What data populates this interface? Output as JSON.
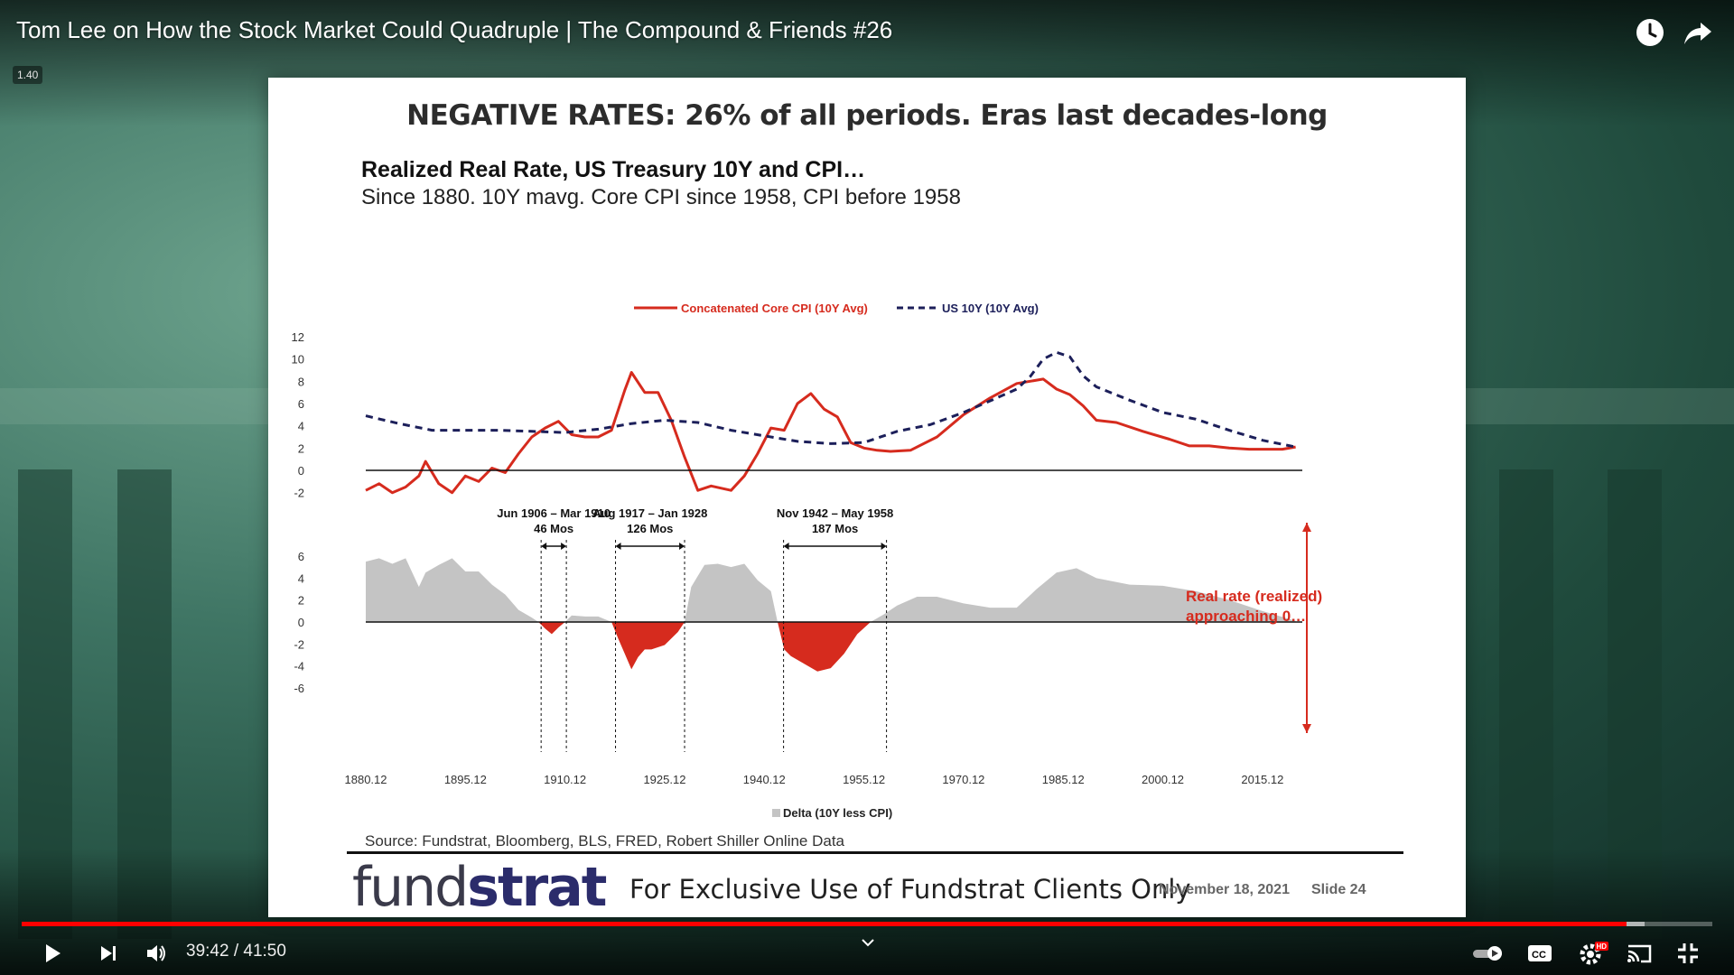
{
  "video": {
    "title": "Tom Lee on How the Stock Market Could Quadruple | The Compound & Friends #26",
    "speed_badge": "1.40"
  },
  "top_controls": [
    {
      "name": "watch-later",
      "icon": "clock-icon"
    },
    {
      "name": "share",
      "icon": "share-arrow-icon"
    }
  ],
  "slide": {
    "header": "NEGATIVE RATES:  26% of all periods.  Eras last decades-long",
    "chart_title": "Realized Real Rate, US Treasury 10Y and CPI…",
    "chart_subtitle": "Since 1880. 10Y mavg. Core CPI since 1958, CPI before 1958",
    "source": "Source: Fundstrat, Bloomberg, BLS, FRED, Robert Shiller Online Data",
    "brand_light": "fund",
    "brand_bold": "strat",
    "exclusive": "For Exclusive Use of Fundstrat Clients Only",
    "date": "November 18, 2021",
    "slide_number": "Slide  24"
  },
  "chart_data": {
    "type": "line",
    "legend": [
      {
        "name": "Concatenated Core CPI (10Y Avg)",
        "color": "#d62b1e",
        "style": "solid"
      },
      {
        "name": "US 10Y (10Y Avg)",
        "color": "#1c1f5a",
        "style": "dashed"
      }
    ],
    "top_panel": {
      "yticks": [
        "12",
        "10",
        "8",
        "6",
        "4",
        "2",
        "0",
        "-2"
      ],
      "ylim": [
        -2,
        12
      ],
      "series": [
        {
          "name": "Concatenated Core CPI (10Y Avg)",
          "x": [
            1880,
            1882,
            1884,
            1886,
            1888,
            1889,
            1891,
            1893,
            1895,
            1897,
            1899,
            1901,
            1903,
            1905,
            1907,
            1909,
            1911,
            1913,
            1915,
            1917,
            1919,
            1920,
            1922,
            1924,
            1926,
            1928,
            1930,
            1932,
            1935,
            1937,
            1939,
            1941,
            1943,
            1945,
            1947,
            1949,
            1951,
            1953,
            1955,
            1957,
            1959,
            1962,
            1966,
            1970,
            1974,
            1978,
            1982,
            1984,
            1986,
            1988,
            1990,
            1993,
            1997,
            2001,
            2004,
            2007,
            2010,
            2013,
            2016,
            2018,
            2020
          ],
          "values": [
            -1.8,
            -1.2,
            -2.0,
            -1.5,
            -0.5,
            0.8,
            -1.2,
            -2.0,
            -0.5,
            -1.0,
            0.2,
            -0.2,
            1.5,
            3.0,
            3.8,
            4.4,
            3.2,
            3.0,
            3.0,
            3.6,
            7.2,
            8.8,
            7.0,
            7.0,
            4.5,
            1.2,
            -1.8,
            -1.4,
            -1.8,
            -0.5,
            1.5,
            3.8,
            3.6,
            6.0,
            6.9,
            5.5,
            4.8,
            2.5,
            2.0,
            1.8,
            1.7,
            1.8,
            3.0,
            5.0,
            6.5,
            7.8,
            8.2,
            7.3,
            6.8,
            5.8,
            4.5,
            4.3,
            3.5,
            2.8,
            2.2,
            2.2,
            2.0,
            1.9,
            1.9,
            1.9,
            2.1
          ]
        },
        {
          "name": "US 10Y (10Y Avg)",
          "x": [
            1880,
            1885,
            1890,
            1895,
            1900,
            1905,
            1910,
            1915,
            1920,
            1925,
            1930,
            1935,
            1940,
            1945,
            1950,
            1955,
            1960,
            1965,
            1970,
            1975,
            1978,
            1980,
            1982,
            1984,
            1986,
            1988,
            1990,
            1995,
            2000,
            2005,
            2010,
            2015,
            2020
          ],
          "values": [
            4.9,
            4.2,
            3.6,
            3.6,
            3.6,
            3.5,
            3.4,
            3.7,
            4.2,
            4.5,
            4.3,
            3.6,
            3.1,
            2.6,
            2.4,
            2.5,
            3.5,
            4.1,
            5.2,
            6.5,
            7.3,
            8.4,
            10.0,
            10.6,
            10.2,
            8.5,
            7.5,
            6.3,
            5.2,
            4.6,
            3.6,
            2.7,
            2.1
          ]
        }
      ]
    },
    "bottom_panel": {
      "legend": "Delta (10Y less CPI)",
      "yticks": [
        "6",
        "4",
        "2",
        "0",
        "-2",
        "-4",
        "-6"
      ],
      "ylim": [
        -6,
        6
      ],
      "series": {
        "name": "Delta (10Y less CPI)",
        "x": [
          1880,
          1882,
          1884,
          1886,
          1888,
          1889,
          1891,
          1893,
          1895,
          1897,
          1899,
          1901,
          1903,
          1905,
          1906,
          1907,
          1908,
          1909,
          1910,
          1911,
          1913,
          1915,
          1917,
          1918,
          1919,
          1920,
          1921,
          1922,
          1923,
          1925,
          1927,
          1928,
          1929,
          1931,
          1933,
          1935,
          1937,
          1939,
          1941,
          1942,
          1943,
          1944,
          1946,
          1948,
          1950,
          1952,
          1954,
          1956,
          1958,
          1960,
          1963,
          1966,
          1970,
          1974,
          1978,
          1981,
          1984,
          1987,
          1990,
          1995,
          2000,
          2005,
          2010,
          2015,
          2020
        ],
        "values": [
          5.5,
          5.8,
          5.3,
          5.8,
          3.2,
          4.5,
          5.2,
          5.8,
          4.6,
          4.6,
          3.4,
          2.5,
          1.1,
          0.4,
          0.0,
          -0.6,
          -1.1,
          -0.5,
          0.0,
          0.6,
          0.5,
          0.5,
          0.0,
          -1.5,
          -2.9,
          -4.3,
          -3.2,
          -2.5,
          -2.5,
          -2.1,
          -0.9,
          0.0,
          3.2,
          5.2,
          5.3,
          5.0,
          5.3,
          3.8,
          2.8,
          0.0,
          -2.5,
          -3.1,
          -3.8,
          -4.5,
          -4.2,
          -2.9,
          -1.1,
          0.0,
          0.7,
          1.5,
          2.3,
          2.3,
          1.7,
          1.3,
          1.3,
          3.0,
          4.5,
          4.9,
          4.0,
          3.4,
          3.3,
          2.8,
          2.0,
          1.0,
          0.1
        ]
      },
      "periods": [
        {
          "label": "Jun 1906 – Mar 1910",
          "duration": "46 Mos",
          "start": 1906.4,
          "end": 1910.2
        },
        {
          "label": "Aug 1917 – Jan 1928",
          "duration": "126 Mos",
          "start": 1917.6,
          "end": 1928.0
        },
        {
          "label": "Nov 1942 – May 1958",
          "duration": "187 Mos",
          "start": 1942.9,
          "end": 1958.4
        }
      ]
    },
    "xticks": [
      "1880.12",
      "1895.12",
      "1910.12",
      "1925.12",
      "1940.12",
      "1955.12",
      "1970.12",
      "1985.12",
      "2000.12",
      "2015.12"
    ],
    "xtick_values": [
      1880,
      1895,
      1910,
      1925,
      1940,
      1955,
      1970,
      1985,
      2000,
      2015
    ],
    "xlim": [
      1880,
      2021
    ],
    "annotation": {
      "line1": "Real rate (realized)",
      "line2": "approaching 0…"
    }
  },
  "player": {
    "current_time": "39:42",
    "duration": "41:50",
    "time_display": "39:42 / 41:50",
    "progress_fraction": 0.949,
    "buffered_fraction": 0.96,
    "controls": [
      "play-icon",
      "next-icon",
      "volume-icon",
      "chevron-down-icon",
      "autoplay-toggle-icon",
      "captions-icon",
      "settings-icon",
      "cast-icon",
      "exit-fullscreen-icon"
    ],
    "settings_badge": "HD",
    "colors": {
      "progress": "#ff0000",
      "cpi_line": "#d62b1e",
      "yield_line": "#1c1f5a",
      "delta_fill": "#c4c4c4",
      "negative_fill": "#d62b1e"
    }
  }
}
